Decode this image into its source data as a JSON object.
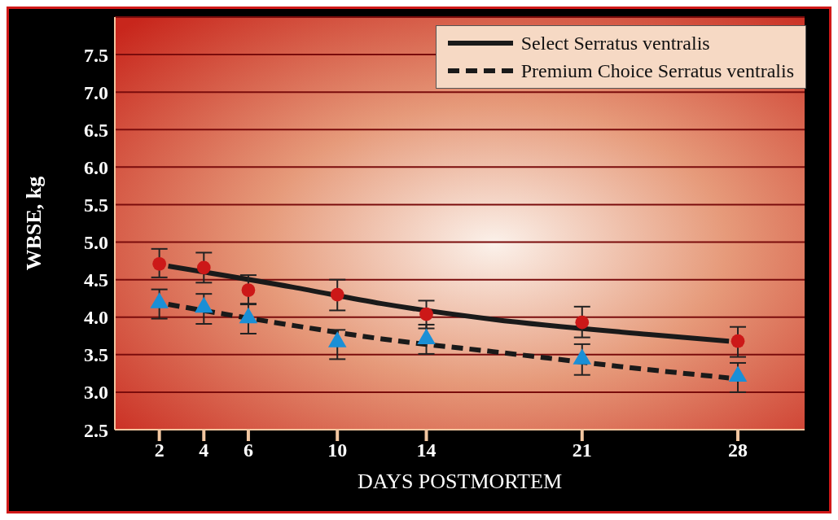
{
  "chart_data": {
    "type": "scatter",
    "xlabel": "DAYS POSTMORTEM",
    "ylabel": "WBSE, kg",
    "xlim": [
      0,
      31
    ],
    "xticks": [
      2,
      4,
      6,
      10,
      14,
      21,
      28
    ],
    "ylim": [
      2.5,
      8.0
    ],
    "yticks": [
      2.5,
      {
        "value": 3,
        "label": "3.0"
      },
      3.5,
      {
        "value": 4,
        "label": "4.0"
      },
      4.5,
      {
        "value": 5,
        "label": "5.0"
      },
      5.5,
      {
        "value": 6,
        "label": "6.0"
      },
      6.5,
      {
        "value": 7,
        "label": "7.0"
      },
      7.5
    ],
    "grid": "y",
    "legend": "top right",
    "series": [
      {
        "name": "Select Serratus ventralis",
        "type": "line",
        "color": "#1a1a1a",
        "line_style": "solid",
        "marker": "none",
        "x": [
          2.4,
          8,
          12,
          17,
          24,
          27.6
        ],
        "values": [
          4.68,
          4.4,
          4.18,
          3.97,
          3.77,
          3.68
        ]
      },
      {
        "name": "Premium Choice Serratus ventralis",
        "type": "line",
        "color": "#1a1a1a",
        "line_style": "dashed",
        "marker": "none",
        "x": [
          2.4,
          8,
          12,
          17,
          24,
          27.6
        ],
        "values": [
          4.17,
          3.89,
          3.71,
          3.54,
          3.3,
          3.19
        ]
      },
      {
        "color": "#cc1818",
        "marker": "circle",
        "x": [
          2,
          4,
          6,
          10,
          14,
          21,
          28
        ],
        "values": [
          4.71,
          4.66,
          4.36,
          4.3,
          4.04,
          3.93,
          3.68
        ],
        "errors": [
          [
            4.53,
            4.91
          ],
          [
            4.46,
            4.86
          ],
          [
            4.18,
            4.56
          ],
          [
            4.09,
            4.5
          ],
          [
            3.85,
            4.22
          ],
          [
            3.73,
            4.14
          ],
          [
            3.47,
            3.87
          ]
        ]
      },
      {
        "color": "#1a8fd6",
        "marker": "triangle",
        "x": [
          2,
          4,
          6,
          10,
          14,
          21,
          28
        ],
        "values": [
          4.19,
          4.13,
          3.99,
          3.67,
          3.71,
          3.44,
          3.21
        ],
        "errors": [
          [
            3.98,
            4.37
          ],
          [
            3.91,
            4.31
          ],
          [
            3.78,
            4.17
          ],
          [
            3.44,
            3.83
          ],
          [
            3.51,
            3.9
          ],
          [
            3.23,
            3.64
          ],
          [
            3.0,
            3.39
          ]
        ]
      }
    ]
  }
}
